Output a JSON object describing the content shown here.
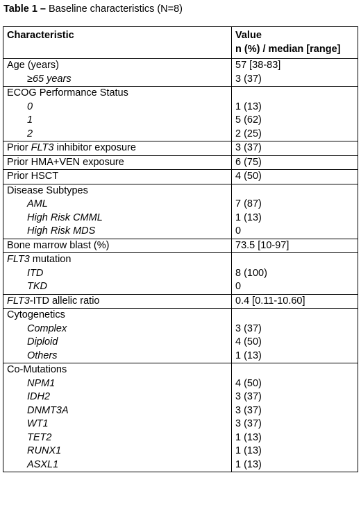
{
  "caption": {
    "label": "Table 1 –",
    "text": " Baseline characteristics (N=8)"
  },
  "header": {
    "characteristic": "Characteristic",
    "value_line1": "Value",
    "value_line2": "n (%) / median [range]"
  },
  "rows": {
    "age": {
      "label": "Age (years)",
      "value": "57 [38-83]",
      "sub": [
        {
          "label": "≥65 years",
          "value": "3 (37)"
        }
      ]
    },
    "ecog": {
      "label": "ECOG Performance Status",
      "sub": [
        {
          "label": "0",
          "value": "1 (13)"
        },
        {
          "label": "1",
          "value": "5 (62)"
        },
        {
          "label": "2",
          "value": "2 (25)"
        }
      ]
    },
    "flt3_inhibitor": {
      "label_prefix": "Prior ",
      "label_italic": "FLT3",
      "label_suffix": " inhibitor exposure",
      "value": "3 (37)"
    },
    "hma_ven": {
      "label": "Prior HMA+VEN exposure",
      "value": "6 (75)"
    },
    "hsct": {
      "label": "Prior HSCT",
      "value": "4 (50)"
    },
    "subtypes": {
      "label": "Disease Subtypes",
      "sub": [
        {
          "label": "AML",
          "value": "7 (87)"
        },
        {
          "label": "High Risk CMML",
          "value": "1 (13)"
        },
        {
          "label": "High Risk MDS",
          "value": "0"
        }
      ]
    },
    "blast": {
      "label": "Bone marrow blast (%)",
      "value": "73.5 [10-97]"
    },
    "flt3_mutation": {
      "label_italic": "FLT3",
      "label_suffix": " mutation",
      "sub": [
        {
          "label": "ITD",
          "value": "8 (100)"
        },
        {
          "label": "TKD",
          "value": "0"
        }
      ]
    },
    "allelic": {
      "label_italic": "FLT3",
      "label_suffix": "-ITD allelic ratio",
      "value": "0.4 [0.11-10.60]"
    },
    "cytogenetics": {
      "label": "Cytogenetics",
      "sub": [
        {
          "label": "Complex",
          "value": "3 (37)"
        },
        {
          "label": "Diploid",
          "value": "4 (50)"
        },
        {
          "label": "Others",
          "value": "1 (13)"
        }
      ]
    },
    "comutations": {
      "label": "Co-Mutations",
      "sub": [
        {
          "label": "NPM1",
          "value": "4 (50)"
        },
        {
          "label": "IDH2",
          "value": "3 (37)"
        },
        {
          "label": "DNMT3A",
          "value": "3 (37)"
        },
        {
          "label": "WT1",
          "value": "3 (37)"
        },
        {
          "label": "TET2",
          "value": "1 (13)"
        },
        {
          "label": "RUNX1",
          "value": "1 (13)"
        },
        {
          "label": "ASXL1",
          "value": "1 (13)"
        }
      ]
    }
  }
}
